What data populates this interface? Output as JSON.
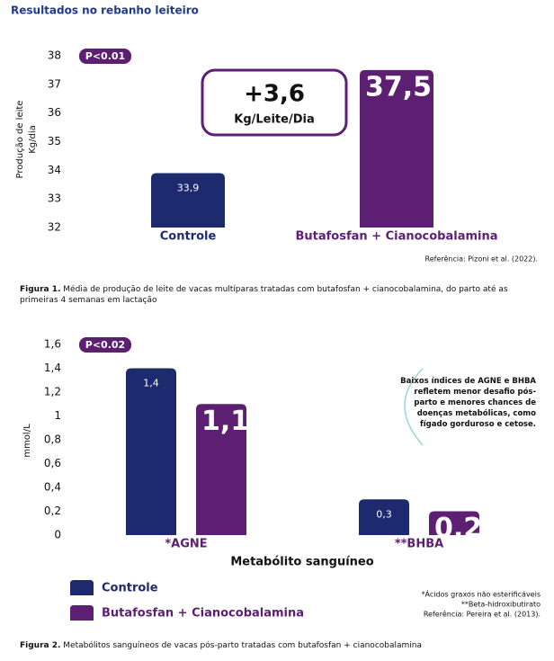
{
  "header": {
    "title": "Resultados no rebanho leiteiro"
  },
  "chart_data": [
    {
      "type": "bar",
      "ylabel": [
        "Produção de leite",
        "Kg/dia"
      ],
      "badge": "P<0.01",
      "annotation": {
        "value": "+3,6",
        "unit": "Kg/Leite/Dia"
      },
      "categories": [
        "Controle",
        "Butafosfan + Cianocobalamina"
      ],
      "values": [
        33.9,
        37.5
      ],
      "value_labels": [
        "33,9",
        "37,5"
      ],
      "colors": [
        "#1e2a6e",
        "#5c1f72"
      ],
      "ylim": [
        32,
        38
      ],
      "yticks": [
        32,
        33,
        34,
        35,
        36,
        37,
        38
      ],
      "source": "Referência: Pizoni et al. (2022).",
      "caption_label": "Figura 1.",
      "caption": "Média de produção de leite de vacas multíparas tratadas com butafosfan + cianocobalamina, do parto até as primeiras 4 semanas em lactação"
    },
    {
      "type": "bar",
      "ylabel": [
        "mmol/L"
      ],
      "badge": "P<0.02",
      "xlabel": "Metabólito sanguíneo",
      "categories": [
        "*AGNE",
        "**BHBA"
      ],
      "series": [
        {
          "name": "Controle",
          "color": "#1e2a6e",
          "values": [
            1.4,
            0.3
          ],
          "value_labels": [
            "1,4",
            "0,3"
          ]
        },
        {
          "name": "Butafosfan + Cianocobalamina",
          "color": "#5c1f72",
          "values": [
            1.1,
            0.2
          ],
          "value_labels": [
            "1,1",
            "0,2"
          ]
        }
      ],
      "ylim": [
        0,
        1.6
      ],
      "yticks": [
        0,
        {
          "value": 0.2,
          "label": "0,2"
        },
        {
          "value": 0.4,
          "label": "0,4"
        },
        {
          "value": 0.6,
          "label": "0,6"
        },
        {
          "value": 0.8,
          "label": "0,8"
        },
        1,
        {
          "value": 1.2,
          "label": "1,2"
        },
        {
          "value": 1.4,
          "label": "1,4"
        },
        {
          "value": 1.6,
          "label": "1,6"
        }
      ],
      "note": "Baixos índices de AGNE e BHBA refletem menor desafio pós-parto e menores chances de doenças metabólicas, como fígado gorduroso e cetose.",
      "footnotes": [
        "*Ácidos graxos não esterificáveis",
        "**Beta-hidroxibutirato",
        "Referência: Pereira et al. (2013)."
      ],
      "caption_label": "Figura 2.",
      "caption": "Metabólitos sanguíneos de vacas pós-parto tratadas com butafosfan + cianocobalamina"
    }
  ]
}
